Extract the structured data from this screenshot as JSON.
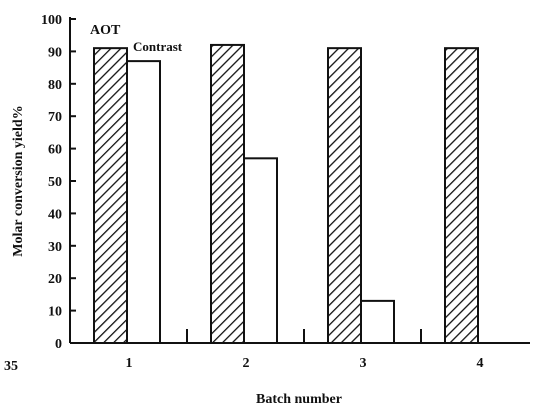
{
  "chart_data": {
    "type": "bar",
    "categories": [
      "1",
      "2",
      "3",
      "4"
    ],
    "series": [
      {
        "name": "AOT",
        "values": [
          91,
          92,
          91,
          91
        ],
        "pattern": "diagonal-hatch"
      },
      {
        "name": "Contrast",
        "values": [
          87,
          57,
          13,
          null
        ],
        "pattern": "none"
      }
    ],
    "xlabel": "Batch number",
    "ylabel": "Molar conversion yield%",
    "ylim": [
      0,
      100
    ],
    "yticks": [
      0,
      10,
      20,
      30,
      40,
      50,
      60,
      70,
      80,
      90,
      100
    ],
    "grid": false,
    "colors": {
      "axis": "#111111",
      "bar_edge": "#111111",
      "bar_fill": "#ffffff",
      "hatch": "#111111"
    },
    "page_number": "35"
  }
}
